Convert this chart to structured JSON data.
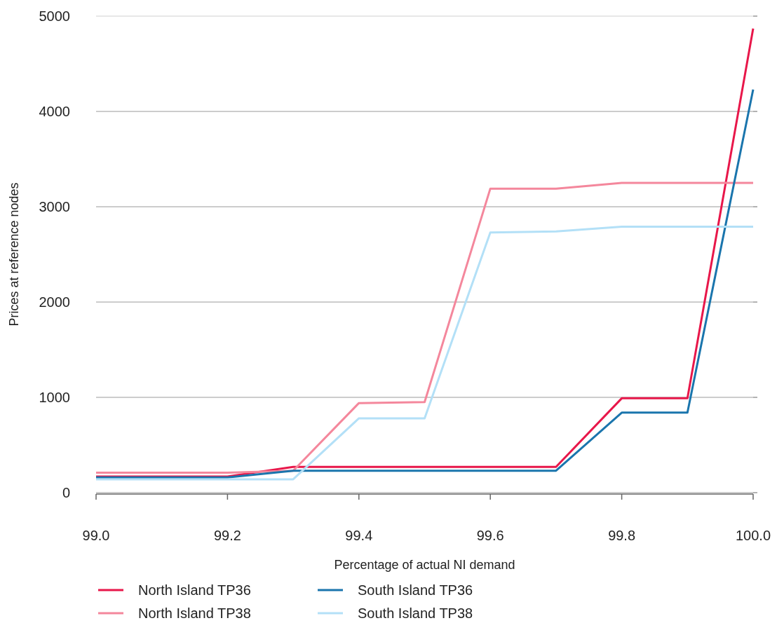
{
  "chart_data": {
    "type": "line",
    "xlabel": "Percentage of actual NI demand",
    "ylabel": "Prices at reference nodes",
    "x": [
      99.0,
      99.1,
      99.2,
      99.3,
      99.4,
      99.5,
      99.6,
      99.7,
      99.8,
      99.9,
      100.0
    ],
    "series": [
      {
        "name": "North Island TP36",
        "color": "#e8174a",
        "values": [
          170,
          170,
          170,
          270,
          270,
          270,
          270,
          270,
          990,
          990,
          4870
        ]
      },
      {
        "name": "North Island TP38",
        "color": "#f4879c",
        "values": [
          210,
          210,
          210,
          230,
          940,
          950,
          3190,
          3190,
          3250,
          3250,
          3250
        ]
      },
      {
        "name": "South Island TP36",
        "color": "#1a75ad",
        "values": [
          160,
          160,
          160,
          230,
          230,
          230,
          230,
          230,
          840,
          840,
          4230
        ]
      },
      {
        "name": "South Island TP38",
        "color": "#b3e0f7",
        "values": [
          140,
          140,
          140,
          140,
          780,
          780,
          2730,
          2740,
          2790,
          2790,
          2790
        ]
      }
    ],
    "xlim": [
      99.0,
      100.0
    ],
    "xticks": [
      {
        "value": 99.0,
        "label": "99.0"
      },
      99.2,
      99.4,
      99.6,
      99.8,
      {
        "value": 100.0,
        "label": "100.0"
      }
    ],
    "ylim": [
      0,
      5000
    ],
    "yticks": [
      0,
      1000,
      2000,
      3000,
      4000,
      5000
    ],
    "grid": "y",
    "legend": "bottom",
    "line_style": "solid",
    "marker": "none"
  }
}
